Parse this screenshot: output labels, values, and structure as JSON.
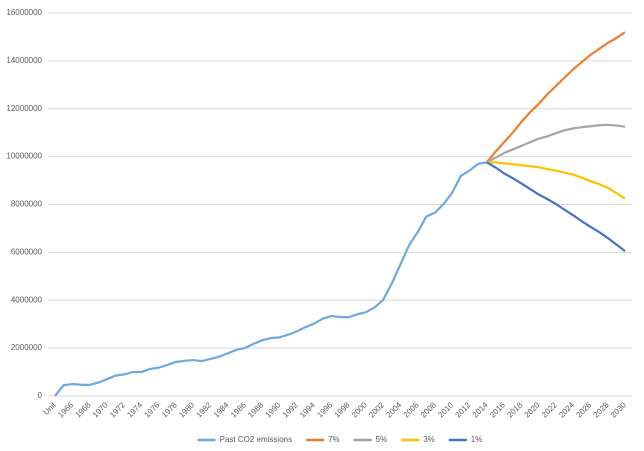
{
  "chart_data": {
    "type": "line",
    "categories": [
      "Unit",
      null,
      "1966",
      null,
      "1968",
      null,
      "1970",
      null,
      "1972",
      null,
      "1974",
      null,
      "1976",
      null,
      "1978",
      null,
      "1980",
      null,
      "1982",
      null,
      "1984",
      null,
      "1986",
      null,
      "1988",
      null,
      "1990",
      null,
      "1992",
      null,
      "1994",
      null,
      "1996",
      null,
      "1998",
      null,
      "2000",
      null,
      "2002",
      null,
      "2004",
      null,
      "2006",
      null,
      "2008",
      null,
      "2010",
      null,
      "2012",
      null,
      "2014",
      null,
      "2016",
      null,
      "2018",
      null,
      "2020",
      null,
      "2022",
      null,
      "2024",
      null,
      "2026",
      null,
      "2028",
      null,
      "2030"
    ],
    "series": [
      {
        "name": "Past CO2 emissions",
        "color": "#6fa8dc",
        "values": [
          0,
          450000,
          500000,
          470000,
          460000,
          560000,
          700000,
          850000,
          900000,
          1000000,
          1000000,
          1130000,
          1180000,
          1300000,
          1420000,
          1470000,
          1500000,
          1460000,
          1550000,
          1640000,
          1780000,
          1930000,
          2010000,
          2180000,
          2330000,
          2420000,
          2450000,
          2560000,
          2700000,
          2880000,
          3020000,
          3230000,
          3340000,
          3300000,
          3290000,
          3410000,
          3500000,
          3700000,
          4020000,
          4700000,
          5500000,
          6300000,
          6850000,
          7500000,
          7660000,
          8020000,
          8500000,
          9200000,
          9420000,
          9700000,
          9760000,
          null,
          null,
          null,
          null,
          null,
          null,
          null,
          null,
          null,
          null,
          null,
          null,
          null,
          null,
          null,
          null
        ]
      },
      {
        "name": "7%",
        "color": "#ed7d31",
        "values": [
          null,
          null,
          null,
          null,
          null,
          null,
          null,
          null,
          null,
          null,
          null,
          null,
          null,
          null,
          null,
          null,
          null,
          null,
          null,
          null,
          null,
          null,
          null,
          null,
          null,
          null,
          null,
          null,
          null,
          null,
          null,
          null,
          null,
          null,
          null,
          null,
          null,
          null,
          null,
          null,
          null,
          null,
          null,
          null,
          null,
          null,
          null,
          null,
          null,
          null,
          9760000,
          10200000,
          10600000,
          11000000,
          11450000,
          11850000,
          12200000,
          12600000,
          12950000,
          13300000,
          13650000,
          13950000,
          14250000,
          14500000,
          14750000,
          14950000,
          15200000
        ]
      },
      {
        "name": "5%",
        "color": "#a5a5a5",
        "values": [
          null,
          null,
          null,
          null,
          null,
          null,
          null,
          null,
          null,
          null,
          null,
          null,
          null,
          null,
          null,
          null,
          null,
          null,
          null,
          null,
          null,
          null,
          null,
          null,
          null,
          null,
          null,
          null,
          null,
          null,
          null,
          null,
          null,
          null,
          null,
          null,
          null,
          null,
          null,
          null,
          null,
          null,
          null,
          null,
          null,
          null,
          null,
          null,
          null,
          null,
          9760000,
          9950000,
          10150000,
          10300000,
          10450000,
          10600000,
          10750000,
          10850000,
          10980000,
          11100000,
          11180000,
          11230000,
          11270000,
          11310000,
          11330000,
          11300000,
          11250000
        ]
      },
      {
        "name": "3%",
        "color": "#ffc000",
        "values": [
          null,
          null,
          null,
          null,
          null,
          null,
          null,
          null,
          null,
          null,
          null,
          null,
          null,
          null,
          null,
          null,
          null,
          null,
          null,
          null,
          null,
          null,
          null,
          null,
          null,
          null,
          null,
          null,
          null,
          null,
          null,
          null,
          null,
          null,
          null,
          null,
          null,
          null,
          null,
          null,
          null,
          null,
          null,
          null,
          null,
          null,
          null,
          null,
          null,
          null,
          9760000,
          9760000,
          9720000,
          9680000,
          9640000,
          9600000,
          9560000,
          9480000,
          9420000,
          9330000,
          9250000,
          9120000,
          8980000,
          8850000,
          8700000,
          8480000,
          8250000
        ]
      },
      {
        "name": "1%",
        "color": "#4472c4",
        "values": [
          null,
          null,
          null,
          null,
          null,
          null,
          null,
          null,
          null,
          null,
          null,
          null,
          null,
          null,
          null,
          null,
          null,
          null,
          null,
          null,
          null,
          null,
          null,
          null,
          null,
          null,
          null,
          null,
          null,
          null,
          null,
          null,
          null,
          null,
          null,
          null,
          null,
          null,
          null,
          null,
          null,
          null,
          null,
          null,
          null,
          null,
          null,
          null,
          null,
          null,
          9760000,
          9550000,
          9300000,
          9100000,
          8880000,
          8650000,
          8420000,
          8230000,
          8020000,
          7780000,
          7550000,
          7300000,
          7070000,
          6850000,
          6600000,
          6330000,
          6050000
        ]
      }
    ],
    "ylim": [
      0,
      16000000
    ],
    "yticks": [
      0,
      2000000,
      4000000,
      6000000,
      8000000,
      10000000,
      12000000,
      14000000,
      16000000
    ],
    "grid": true,
    "legend": "bottom"
  }
}
